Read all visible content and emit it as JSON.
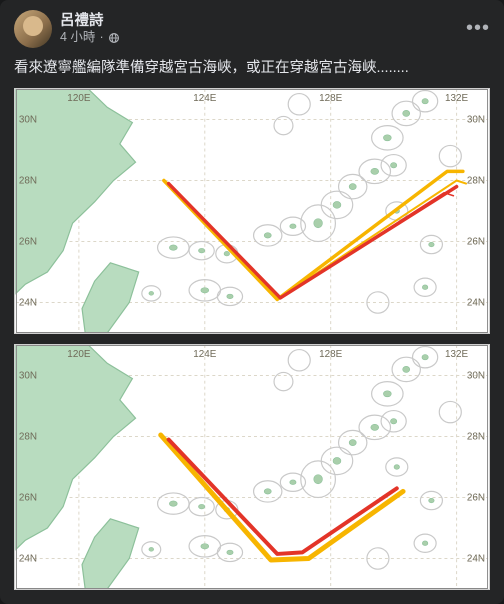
{
  "post": {
    "author": "呂禮詩",
    "time": "4 小時",
    "privacy_icon": "globe-icon",
    "body": "看來遼寧艦編隊準備穿越宮古海峽，或正在穿越宮古海峽........",
    "more_label": "•••"
  },
  "map_common": {
    "background": "#ffffff",
    "sea_color": "#ffffff",
    "land_color": "#b8dcbf",
    "land_stroke": "#8cc09a",
    "grid_color": "#dcd7c9",
    "island_outline": "#c9c9c9",
    "island_fill": "#a9cfab",
    "axis_label_color": "#6f6a58",
    "axis_label_fontsize": 10,
    "xlim": [
      118,
      133
    ],
    "ylim": [
      23,
      31
    ],
    "xticks": [
      120,
      124,
      128,
      132
    ],
    "xticklabels": [
      "120E",
      "124E",
      "128E",
      "132E"
    ],
    "yticks": [
      24,
      26,
      28,
      30
    ],
    "yticklabels": [
      "24N",
      "26N",
      "28N",
      "30N"
    ]
  },
  "map1": {
    "tracks": [
      {
        "color": "#f7b500",
        "width": 3.5,
        "points": [
          [
            122.7,
            28.0
          ],
          [
            126.3,
            24.1
          ],
          [
            131.7,
            28.3
          ],
          [
            132.2,
            28.3
          ]
        ]
      },
      {
        "color": "#f7b500",
        "width": 2.0,
        "points": [
          [
            122.7,
            28.0
          ],
          [
            126.3,
            24.1
          ],
          [
            132.0,
            28.0
          ],
          [
            132.3,
            27.9
          ]
        ]
      },
      {
        "color": "#e33428",
        "width": 3.5,
        "points": [
          [
            122.85,
            27.9
          ],
          [
            126.4,
            24.15
          ],
          [
            132.0,
            27.8
          ]
        ]
      },
      {
        "color": "#e33428",
        "width": 1.5,
        "points": [
          [
            126.4,
            24.15
          ],
          [
            131.6,
            27.6
          ],
          [
            131.9,
            27.5
          ]
        ]
      }
    ]
  },
  "map2": {
    "tracks": [
      {
        "color": "#f7b500",
        "width": 5.0,
        "points": [
          [
            122.6,
            28.05
          ],
          [
            126.1,
            23.95
          ],
          [
            127.3,
            24.0
          ],
          [
            130.3,
            26.2
          ]
        ]
      },
      {
        "color": "#e33428",
        "width": 4.0,
        "points": [
          [
            122.85,
            27.9
          ],
          [
            126.3,
            24.15
          ],
          [
            127.1,
            24.2
          ],
          [
            130.1,
            26.3
          ]
        ]
      }
    ]
  }
}
